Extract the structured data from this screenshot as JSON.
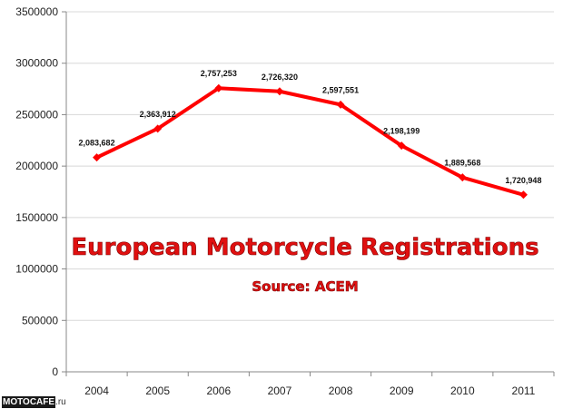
{
  "chart_data": {
    "type": "line",
    "title": "European Motorcycle Registrations",
    "subtitle": "Source: ACEM",
    "categories": [
      "2004",
      "2005",
      "2006",
      "2007",
      "2008",
      "2009",
      "2010",
      "2011"
    ],
    "values": [
      2083682,
      2363912,
      2757253,
      2726320,
      2597551,
      2198199,
      1889568,
      1720948
    ],
    "data_labels": [
      "2,083,682",
      "2,363,912",
      "2,757,253",
      "2,726,320",
      "2,597,551",
      "2,198,199",
      "1,889,568",
      "1,720,948"
    ],
    "yticks": [
      "0",
      "500000",
      "1000000",
      "1500000",
      "2000000",
      "2500000",
      "3000000",
      "3500000"
    ],
    "ylim": [
      0,
      3500000
    ],
    "grid": true,
    "legend": "none",
    "line_color": "#ff0000"
  },
  "watermark": {
    "part1": "MOTOCAFE",
    "part2": ".ru"
  }
}
